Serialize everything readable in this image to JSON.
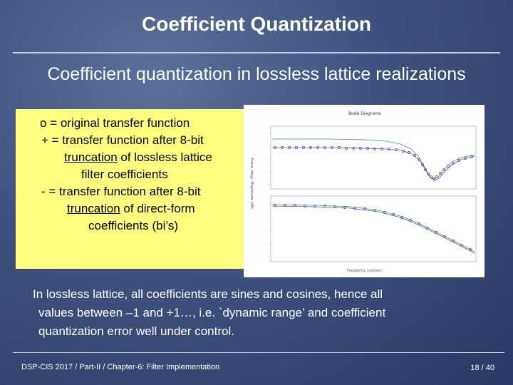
{
  "slide": {
    "title": "Coefficient Quantization",
    "subtitle": "Coefficient quantization in lossless lattice realizations"
  },
  "legend": {
    "line1": "o = original transfer function",
    "line2": "+ = transfer function after 8-bit",
    "line3_underlined": "truncation",
    "line3_rest": " of lossless lattice",
    "line4": "filter coefficients",
    "line5": "- = transfer function after 8-bit",
    "line6_underlined": "truncation",
    "line6_rest": " of direct-form",
    "line7": "coefficients (bi’s)"
  },
  "figure": {
    "title": "Bode Diagrams",
    "ylabel": "Phase (deg); Magnitude (dB)",
    "xlabel": "Frequency (rad/sec)"
  },
  "body": {
    "line1": "In lossless lattice, all coefficients are sines and cosines, hence all",
    "line2": "values between –1 and +1…, i.e. `dynamic range’ and coefficient",
    "line3": "quantization error well under control."
  },
  "footer": {
    "left": "DSP-CIS 2017  /  Part-II  /  Chapter-6: Filter Implementation",
    "page": "18 / 40"
  },
  "colors": {
    "background": "#3f517e",
    "legend_box": "#ffff80",
    "original_marker": "#7a3a7a",
    "lattice_curve": "#3aa36a",
    "direct_curve": "#4060c0"
  }
}
